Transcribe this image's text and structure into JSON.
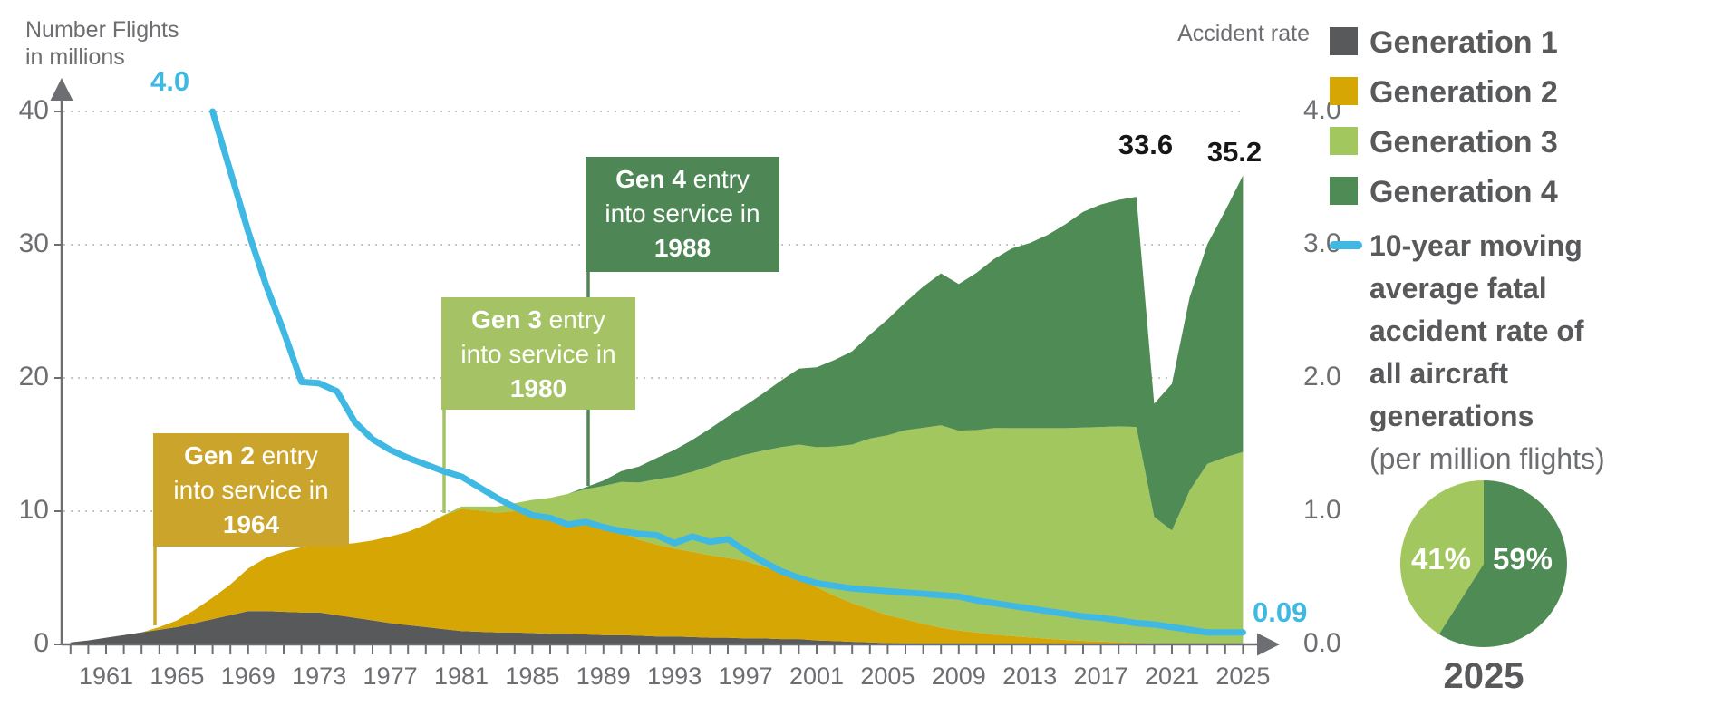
{
  "chart_data": {
    "type": "area",
    "stacked": true,
    "x": [
      1959,
      1960,
      1961,
      1962,
      1963,
      1964,
      1965,
      1966,
      1967,
      1968,
      1969,
      1970,
      1971,
      1972,
      1973,
      1974,
      1975,
      1976,
      1977,
      1978,
      1979,
      1980,
      1981,
      1982,
      1983,
      1984,
      1985,
      1986,
      1987,
      1988,
      1989,
      1990,
      1991,
      1992,
      1993,
      1994,
      1995,
      1996,
      1997,
      1998,
      1999,
      2000,
      2001,
      2002,
      2003,
      2004,
      2005,
      2006,
      2007,
      2008,
      2009,
      2010,
      2011,
      2012,
      2013,
      2014,
      2015,
      2016,
      2017,
      2018,
      2019,
      2020,
      2021,
      2022,
      2023,
      2024,
      2025
    ],
    "x_tick_labels": [
      "1961",
      "1965",
      "1969",
      "1973",
      "1977",
      "1981",
      "1985",
      "1989",
      "1993",
      "1997",
      "2001",
      "2005",
      "2009",
      "2013",
      "2017",
      "2021",
      "2025"
    ],
    "left_axis": {
      "label": "Number Flights\nin millions",
      "ticks": [
        0,
        10,
        20,
        30,
        40
      ],
      "tick_labels": [
        "0",
        "10",
        "20",
        "30",
        "40"
      ],
      "range": [
        0,
        40
      ]
    },
    "right_axis": {
      "label": "Accident rate",
      "ticks": [
        0,
        1,
        2,
        3,
        4
      ],
      "tick_labels": [
        "0.0",
        "1.0",
        "2.0",
        "3.0",
        "4.0"
      ],
      "range": [
        0,
        4
      ]
    },
    "series": [
      {
        "name": "Generation 1",
        "color": "#58595b",
        "values": [
          0.15,
          0.3,
          0.5,
          0.7,
          0.9,
          1.1,
          1.3,
          1.6,
          1.9,
          2.2,
          2.5,
          2.5,
          2.45,
          2.4,
          2.4,
          2.2,
          2.0,
          1.8,
          1.6,
          1.45,
          1.3,
          1.15,
          1.0,
          0.95,
          0.9,
          0.9,
          0.85,
          0.8,
          0.8,
          0.75,
          0.7,
          0.7,
          0.65,
          0.6,
          0.6,
          0.55,
          0.5,
          0.5,
          0.45,
          0.45,
          0.4,
          0.4,
          0.3,
          0.25,
          0.2,
          0.15,
          0.1,
          0.08,
          0.06,
          0.05,
          0.05,
          0.04,
          0.04,
          0.03,
          0.03,
          0.03,
          0.03,
          0.02,
          0.02,
          0.02,
          0.02,
          0.01,
          0.01,
          0.01,
          0.01,
          0.01,
          0.01
        ]
      },
      {
        "name": "Generation 2",
        "color": "#d6a704",
        "values": [
          0,
          0,
          0,
          0,
          0,
          0.2,
          0.5,
          1.0,
          1.6,
          2.3,
          3.2,
          4.0,
          4.5,
          4.9,
          5.1,
          5.3,
          5.6,
          6.0,
          6.5,
          7.0,
          7.7,
          8.5,
          9.2,
          9.1,
          9.0,
          9.1,
          9.1,
          8.8,
          8.5,
          8.3,
          8.0,
          7.7,
          7.2,
          6.9,
          6.6,
          6.4,
          6.2,
          6.0,
          5.8,
          5.4,
          5.0,
          4.6,
          4.0,
          3.4,
          2.9,
          2.5,
          2.1,
          1.8,
          1.5,
          1.2,
          1.0,
          0.85,
          0.7,
          0.6,
          0.5,
          0.4,
          0.3,
          0.25,
          0.2,
          0.15,
          0.1,
          0.06,
          0.05,
          0.05,
          0.04,
          0.04,
          0.03
        ]
      },
      {
        "name": "Generation 3",
        "color": "#a2c75e",
        "values": [
          0,
          0,
          0,
          0,
          0,
          0,
          0,
          0,
          0,
          0,
          0,
          0,
          0,
          0,
          0,
          0,
          0,
          0,
          0,
          0,
          0,
          0.05,
          0.15,
          0.3,
          0.45,
          0.6,
          0.9,
          1.4,
          2.0,
          2.6,
          3.2,
          3.8,
          4.3,
          4.9,
          5.4,
          6.0,
          6.7,
          7.4,
          8.0,
          8.7,
          9.4,
          10.0,
          10.5,
          11.2,
          11.9,
          12.8,
          13.5,
          14.2,
          14.7,
          15.2,
          15.0,
          15.2,
          15.5,
          15.6,
          15.7,
          15.8,
          15.9,
          16.0,
          16.1,
          16.2,
          16.2,
          9.5,
          8.5,
          11.5,
          13.5,
          14.0,
          14.4
        ]
      },
      {
        "name": "Generation 4",
        "color": "#4f8b54",
        "values": [
          0,
          0,
          0,
          0,
          0,
          0,
          0,
          0,
          0,
          0,
          0,
          0,
          0,
          0,
          0,
          0,
          0,
          0,
          0,
          0,
          0,
          0,
          0,
          0,
          0,
          0,
          0,
          0,
          0,
          0.15,
          0.4,
          0.8,
          1.2,
          1.6,
          2.0,
          2.4,
          2.8,
          3.2,
          3.7,
          4.3,
          5.0,
          5.7,
          6.0,
          6.5,
          7.0,
          7.8,
          8.7,
          9.6,
          10.6,
          11.4,
          11.0,
          11.8,
          12.7,
          13.5,
          13.9,
          14.5,
          15.3,
          16.2,
          16.7,
          17.0,
          17.28,
          8.5,
          11.0,
          14.5,
          16.5,
          18.5,
          20.76
        ]
      }
    ],
    "line_series": {
      "name": "10-year moving average fatal accident rate of all aircraft generations",
      "unit": "(per million flights)",
      "axis": "right",
      "color": "#3fb9e4",
      "x": [
        1967,
        1968,
        1969,
        1970,
        1971,
        1972,
        1973,
        1974,
        1975,
        1976,
        1977,
        1978,
        1979,
        1980,
        1981,
        1982,
        1983,
        1984,
        1985,
        1986,
        1987,
        1988,
        1989,
        1990,
        1991,
        1992,
        1993,
        1994,
        1995,
        1996,
        1997,
        1998,
        1999,
        2000,
        2001,
        2002,
        2003,
        2004,
        2005,
        2006,
        2007,
        2008,
        2009,
        2010,
        2011,
        2012,
        2013,
        2014,
        2015,
        2016,
        2017,
        2018,
        2019,
        2020,
        2021,
        2022,
        2023,
        2024,
        2025
      ],
      "values": [
        4.0,
        3.55,
        3.1,
        2.7,
        2.35,
        1.97,
        1.96,
        1.9,
        1.67,
        1.54,
        1.46,
        1.4,
        1.35,
        1.3,
        1.26,
        1.18,
        1.1,
        1.03,
        0.97,
        0.95,
        0.9,
        0.92,
        0.88,
        0.85,
        0.83,
        0.82,
        0.76,
        0.81,
        0.77,
        0.79,
        0.7,
        0.62,
        0.55,
        0.5,
        0.46,
        0.44,
        0.42,
        0.41,
        0.4,
        0.39,
        0.38,
        0.37,
        0.36,
        0.33,
        0.31,
        0.29,
        0.27,
        0.25,
        0.23,
        0.21,
        0.2,
        0.18,
        0.16,
        0.15,
        0.13,
        0.11,
        0.09,
        0.09,
        0.09
      ]
    },
    "annotations": [
      {
        "gen": "Gen 2",
        "entry_word": "entry",
        "line2": "into service in",
        "year": "1964",
        "color": "#cba42c"
      },
      {
        "gen": "Gen 3",
        "entry_word": "entry",
        "line2": "into service in",
        "year": "1980",
        "color": "#a5c364"
      },
      {
        "gen": "Gen 4",
        "entry_word": "entry",
        "line2": "into service in",
        "year": "1988",
        "color": "#4e8755"
      }
    ],
    "point_labels": {
      "start_rate": "4.0",
      "end_rate": "0.09",
      "peak_2019": "33.6",
      "peak_2025": "35.2"
    }
  },
  "legend": {
    "items": [
      {
        "label": "Generation 1",
        "color": "#58595b"
      },
      {
        "label": "Generation 2",
        "color": "#d6a704"
      },
      {
        "label": "Generation 3",
        "color": "#a2c75e"
      },
      {
        "label": "Generation 4",
        "color": "#4f8b54"
      }
    ],
    "line_item": {
      "label": "10-year moving average fatal accident rate of all aircraft generations",
      "unit": "(per million flights)",
      "color": "#3fb9e4"
    }
  },
  "pie": {
    "year": "2025",
    "slices": [
      {
        "label": "59%",
        "value": 59,
        "color": "#4f8b54"
      },
      {
        "label": "41%",
        "value": 41,
        "color": "#a2c75e"
      }
    ]
  }
}
